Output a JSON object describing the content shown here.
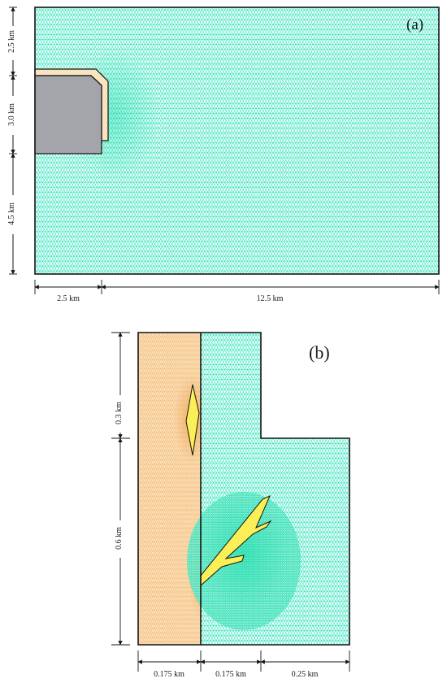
{
  "panel_a": {
    "label": "(a)",
    "dims": {
      "top": "2.5 km",
      "middle": "3.0 km",
      "bottom": "4.5 km",
      "left_width": "2.5 km",
      "right_width": "12.5 km"
    }
  },
  "panel_b": {
    "label": "(b)",
    "dims": {
      "upper": "0.3 km",
      "lower": "0.6 km",
      "w1": "0.175 km",
      "w2": "0.175 km",
      "w3": "0.25 km"
    }
  },
  "colors": {
    "mesh_green": "#13e0b2",
    "mesh_orange": "#f2b66a",
    "fill_orange": "#fae3bf",
    "gray_block": "#a3a5ab",
    "vein_yellow": "#fbef57",
    "outline": "#151515"
  }
}
